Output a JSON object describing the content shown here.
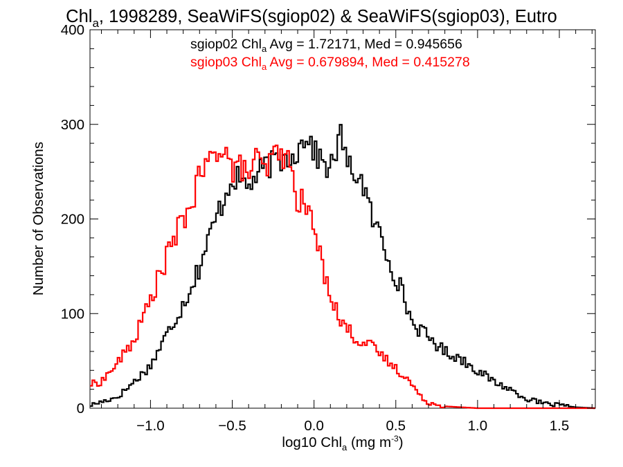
{
  "chart_data": {
    "type": "histogram",
    "title": {
      "prefix": "Chl",
      "sub": "a",
      "rest": ", 1998289, SeaWiFS(sgiop02) & SeaWiFS(sgiop03), Eutro"
    },
    "xlabel": {
      "prefix": "log10 Chl",
      "sub": "a",
      "unit_pre": " (mg m",
      "sup": "-3",
      "unit_post": ")"
    },
    "ylabel": "Number of Observations",
    "xlim": [
      -1.37,
      1.72
    ],
    "ylim": [
      0,
      400
    ],
    "x_ticks": [
      -1.0,
      -0.5,
      0.0,
      0.5,
      1.0,
      1.5
    ],
    "x_tick_labels": [
      "−1.0",
      "−0.5",
      "0.0",
      "0.5",
      "1.0",
      "1.5"
    ],
    "y_ticks": [
      0,
      100,
      200,
      300,
      400
    ],
    "y_tick_labels": [
      "0",
      "100",
      "200",
      "300",
      "400"
    ],
    "bin_width": 0.014,
    "series": [
      {
        "id": "sgiop02",
        "color": "#000000",
        "legend": {
          "prefix": "sgiop02 Chl",
          "sub": "a",
          "rest": " Avg = 1.72171, Med = 0.945656"
        },
        "points": [
          [
            -1.37,
            3
          ],
          [
            -1.2,
            12
          ],
          [
            -1.1,
            28
          ],
          [
            -1.0,
            45
          ],
          [
            -0.9,
            78
          ],
          [
            -0.8,
            110
          ],
          [
            -0.7,
            150
          ],
          [
            -0.6,
            200
          ],
          [
            -0.5,
            245
          ],
          [
            -0.4,
            235
          ],
          [
            -0.3,
            255
          ],
          [
            -0.2,
            262
          ],
          [
            -0.1,
            272
          ],
          [
            -0.04,
            292
          ],
          [
            0.0,
            270
          ],
          [
            0.1,
            252
          ],
          [
            0.17,
            292
          ],
          [
            0.2,
            255
          ],
          [
            0.25,
            250
          ],
          [
            0.3,
            238
          ],
          [
            0.35,
            202
          ],
          [
            0.4,
            185
          ],
          [
            0.45,
            162
          ],
          [
            0.5,
            140
          ],
          [
            0.55,
            118
          ],
          [
            0.6,
            90
          ],
          [
            0.7,
            75
          ],
          [
            0.8,
            60
          ],
          [
            0.9,
            52
          ],
          [
            1.0,
            40
          ],
          [
            1.1,
            28
          ],
          [
            1.2,
            20
          ],
          [
            1.3,
            10
          ],
          [
            1.4,
            5
          ],
          [
            1.5,
            3
          ],
          [
            1.6,
            1
          ],
          [
            1.72,
            0
          ]
        ]
      },
      {
        "id": "sgiop03",
        "color": "#ff0000",
        "legend": {
          "prefix": "sgiop03 Chl",
          "sub": "a",
          "rest": " Avg = 0.679894, Med = 0.415278"
        },
        "points": [
          [
            -1.37,
            25
          ],
          [
            -1.3,
            28
          ],
          [
            -1.2,
            48
          ],
          [
            -1.1,
            72
          ],
          [
            -1.0,
            115
          ],
          [
            -0.9,
            160
          ],
          [
            -0.8,
            200
          ],
          [
            -0.75,
            215
          ],
          [
            -0.7,
            245
          ],
          [
            -0.6,
            270
          ],
          [
            -0.55,
            280
          ],
          [
            -0.5,
            250
          ],
          [
            -0.45,
            255
          ],
          [
            -0.4,
            248
          ],
          [
            -0.35,
            265
          ],
          [
            -0.3,
            248
          ],
          [
            -0.25,
            268
          ],
          [
            -0.2,
            270
          ],
          [
            -0.15,
            258
          ],
          [
            -0.1,
            220
          ],
          [
            -0.05,
            215
          ],
          [
            0.0,
            190
          ],
          [
            0.05,
            150
          ],
          [
            0.1,
            125
          ],
          [
            0.15,
            95
          ],
          [
            0.2,
            85
          ],
          [
            0.25,
            75
          ],
          [
            0.3,
            70
          ],
          [
            0.35,
            65
          ],
          [
            0.4,
            58
          ],
          [
            0.45,
            50
          ],
          [
            0.5,
            42
          ],
          [
            0.55,
            35
          ],
          [
            0.6,
            25
          ],
          [
            0.65,
            12
          ],
          [
            0.7,
            6
          ],
          [
            0.8,
            2
          ],
          [
            0.9,
            1
          ],
          [
            1.0,
            0
          ],
          [
            1.72,
            0
          ]
        ]
      }
    ]
  }
}
